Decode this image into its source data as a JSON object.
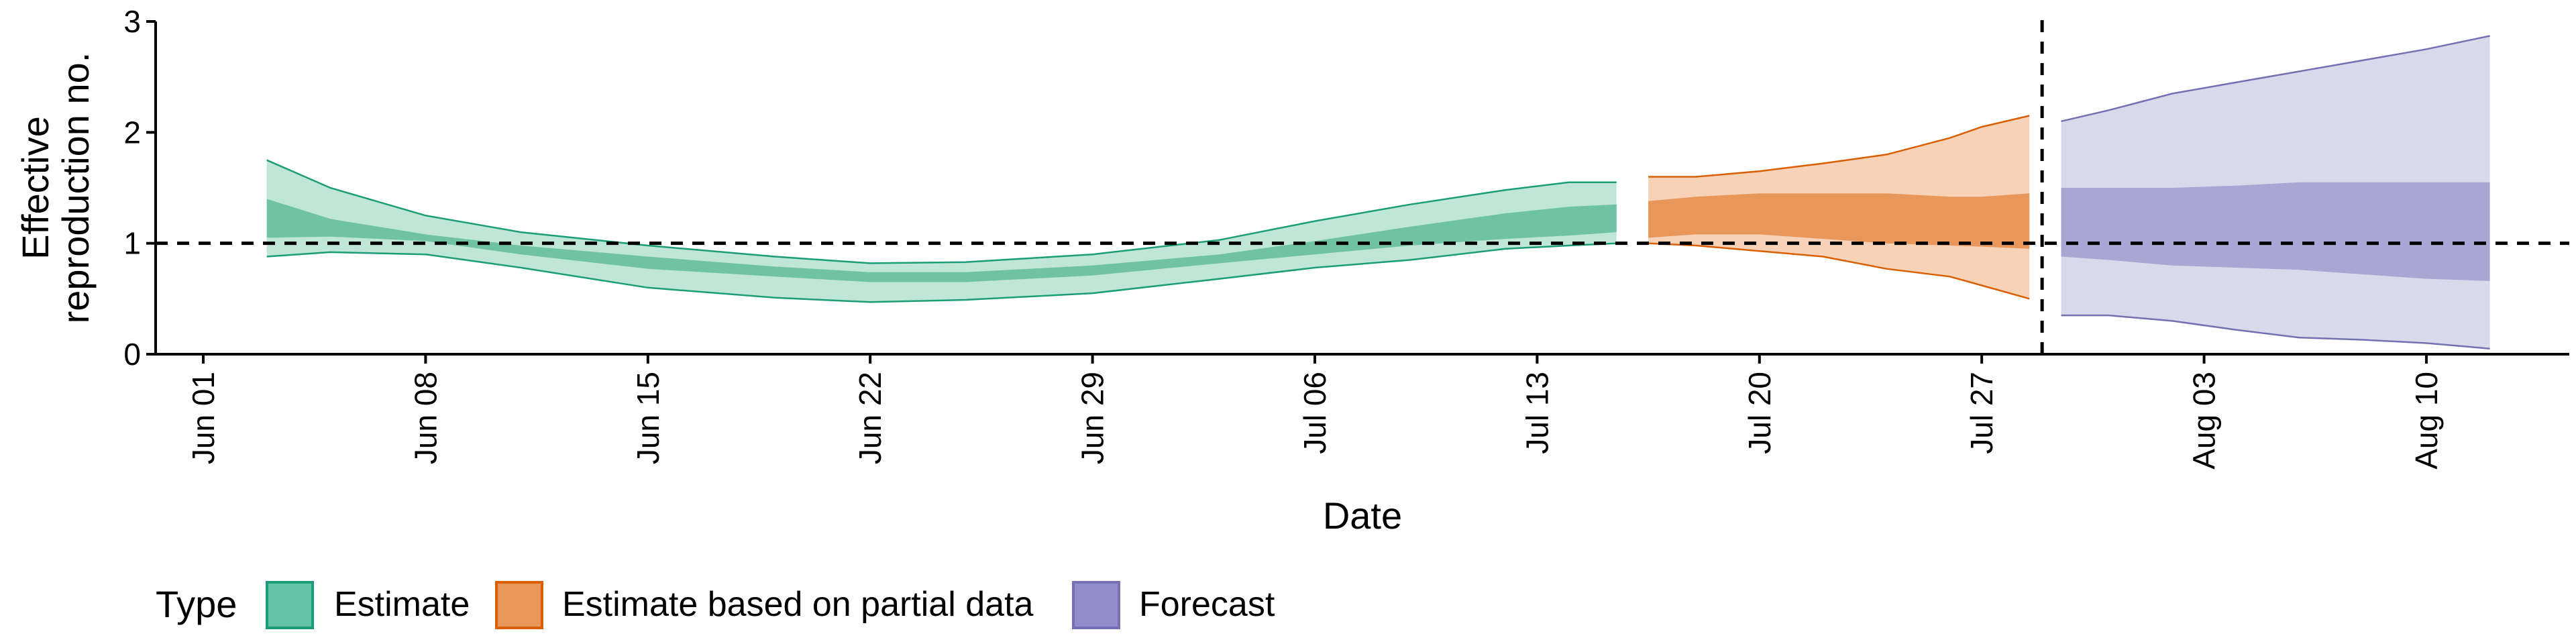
{
  "chart_data": {
    "type": "area",
    "xlabel": "Date",
    "ylabel_lines": [
      "Effective",
      "reproduction no."
    ],
    "ylim": [
      0,
      3
    ],
    "yticks": [
      0,
      1,
      2,
      3
    ],
    "xlim_days": [
      -0.5,
      75.5
    ],
    "x_ticks": [
      {
        "label": "Jun 01",
        "day": 1
      },
      {
        "label": "Jun 08",
        "day": 8
      },
      {
        "label": "Jun 15",
        "day": 15
      },
      {
        "label": "Jun 22",
        "day": 22
      },
      {
        "label": "Jun 29",
        "day": 29
      },
      {
        "label": "Jul 06",
        "day": 36
      },
      {
        "label": "Jul 13",
        "day": 43
      },
      {
        "label": "Jul 20",
        "day": 50
      },
      {
        "label": "Jul 27",
        "day": 57
      },
      {
        "label": "Aug 03",
        "day": 64
      },
      {
        "label": "Aug 10",
        "day": 71
      }
    ],
    "reference_line_y": 1,
    "forecast_start_day": 58.9,
    "legend": {
      "title": "Type",
      "items": [
        {
          "label": "Estimate",
          "color": "#66c2a5"
        },
        {
          "label": "Estimate based on partial data",
          "color": "#e8975a"
        },
        {
          "label": "Forecast",
          "color": "#8f8ecb"
        }
      ]
    },
    "series": [
      {
        "name": "Estimate",
        "fill_outer": "#bfe6d6",
        "fill_inner": "#70c3a2",
        "stroke": "#1b9e77",
        "x": [
          3,
          5,
          8,
          11,
          15,
          19,
          22,
          25,
          29,
          33,
          36,
          39,
          42,
          44,
          45.5
        ],
        "outer_upper": [
          1.75,
          1.5,
          1.25,
          1.1,
          0.98,
          0.88,
          0.82,
          0.83,
          0.9,
          1.03,
          1.2,
          1.35,
          1.48,
          1.55,
          1.55
        ],
        "inner_upper": [
          1.4,
          1.22,
          1.08,
          0.98,
          0.88,
          0.79,
          0.74,
          0.74,
          0.8,
          0.9,
          1.02,
          1.15,
          1.27,
          1.33,
          1.35
        ],
        "inner_lower": [
          1.05,
          1.06,
          1.02,
          0.9,
          0.77,
          0.7,
          0.65,
          0.65,
          0.71,
          0.82,
          0.9,
          0.98,
          1.04,
          1.07,
          1.1
        ],
        "outer_lower": [
          0.88,
          0.92,
          0.9,
          0.78,
          0.6,
          0.51,
          0.47,
          0.49,
          0.55,
          0.68,
          0.78,
          0.85,
          0.95,
          0.98,
          1.0
        ]
      },
      {
        "name": "Estimate based on partial data",
        "fill_outer": "#f7d2b6",
        "fill_inner": "#e8975a",
        "stroke": "#d95f02",
        "x": [
          46.5,
          48,
          50,
          52,
          54,
          56,
          57,
          58.5
        ],
        "outer_upper": [
          1.6,
          1.6,
          1.65,
          1.72,
          1.8,
          1.95,
          2.05,
          2.15
        ],
        "inner_upper": [
          1.38,
          1.42,
          1.45,
          1.45,
          1.45,
          1.42,
          1.42,
          1.45
        ],
        "inner_lower": [
          1.05,
          1.08,
          1.08,
          1.04,
          1.0,
          0.98,
          0.97,
          0.95
        ],
        "outer_lower": [
          1.0,
          0.98,
          0.93,
          0.88,
          0.77,
          0.7,
          0.62,
          0.5
        ]
      },
      {
        "name": "Forecast",
        "fill_outer": "#dad9ec",
        "fill_inner": "#a8a6d3",
        "stroke": "#7570b3",
        "x": [
          59.5,
          61,
          63,
          65,
          67,
          69,
          71,
          73
        ],
        "outer_upper": [
          2.1,
          2.2,
          2.35,
          2.45,
          2.55,
          2.65,
          2.75,
          2.87
        ],
        "inner_upper": [
          1.5,
          1.5,
          1.5,
          1.52,
          1.55,
          1.55,
          1.55,
          1.55
        ],
        "inner_lower": [
          0.88,
          0.85,
          0.8,
          0.78,
          0.76,
          0.72,
          0.68,
          0.66
        ],
        "outer_lower": [
          0.35,
          0.35,
          0.3,
          0.22,
          0.15,
          0.13,
          0.1,
          0.05
        ]
      }
    ]
  }
}
